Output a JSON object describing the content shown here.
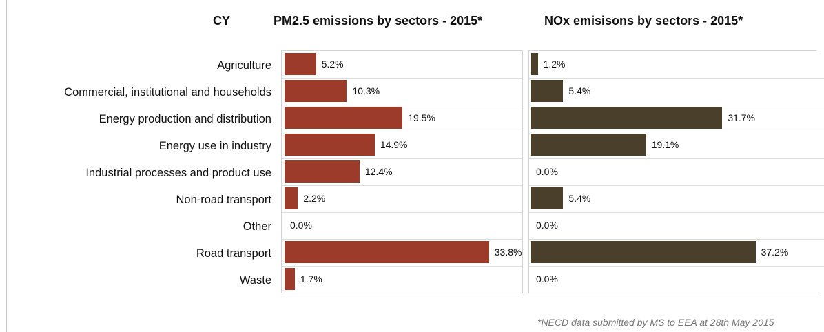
{
  "header": {
    "country": "CY",
    "pm_title": "PM2.5 emissions by sectors - 2015*",
    "nox_title": "NOx emisisons by sectors - 2015*"
  },
  "footnote": "*NECD data submitted by MS to EEA at 28th May 2015",
  "chart_data": [
    {
      "type": "bar",
      "orientation": "horizontal",
      "title": "PM2.5 emissions by sectors - 2015*",
      "color": "#9d3b2a",
      "categories": [
        "Agriculture",
        "Commercial, institutional and households",
        "Energy production and distribution",
        "Energy use in industry",
        "Industrial processes and product use",
        "Non-road transport",
        "Other",
        "Road transport",
        "Waste"
      ],
      "values": [
        5.2,
        10.3,
        19.5,
        14.9,
        12.4,
        2.2,
        0.0,
        33.8,
        1.7
      ],
      "labels": [
        "5.2%",
        "10.3%",
        "19.5%",
        "14.9%",
        "12.4%",
        "2.2%",
        "0.0%",
        "33.8%",
        "1.7%"
      ],
      "unit": "%"
    },
    {
      "type": "bar",
      "orientation": "horizontal",
      "title": "NOx emisisons by sectors - 2015*",
      "color": "#4a3f2a",
      "categories": [
        "Agriculture",
        "Commercial, institutional and households",
        "Energy production and distribution",
        "Energy use in industry",
        "Industrial processes and product use",
        "Non-road transport",
        "Other",
        "Road transport",
        "Waste"
      ],
      "values": [
        1.2,
        5.4,
        31.7,
        19.1,
        0.0,
        5.4,
        0.0,
        37.2,
        0.0
      ],
      "labels": [
        "1.2%",
        "5.4%",
        "31.7%",
        "19.1%",
        "0.0%",
        "5.4%",
        "0.0%",
        "37.2%",
        "0.0%"
      ],
      "unit": "%"
    }
  ]
}
